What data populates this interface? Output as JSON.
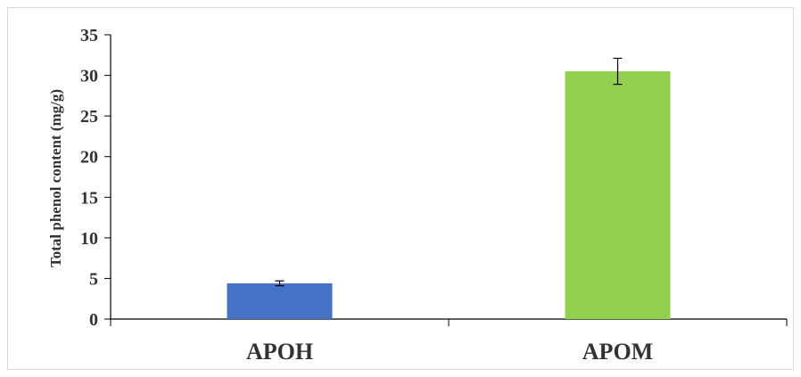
{
  "chart_data": {
    "type": "bar",
    "title": "",
    "xlabel": "",
    "ylabel": "Total phenol content (mg/g)",
    "categories": [
      "APOH",
      "APOM"
    ],
    "values": [
      4.4,
      30.5
    ],
    "error": [
      0.3,
      1.6
    ],
    "colors": [
      "#4472c4",
      "#92d050"
    ],
    "ylim": [
      0,
      35
    ],
    "yticks": [
      0,
      5,
      10,
      15,
      20,
      25,
      30,
      35
    ],
    "grid": false,
    "legend": "none"
  }
}
